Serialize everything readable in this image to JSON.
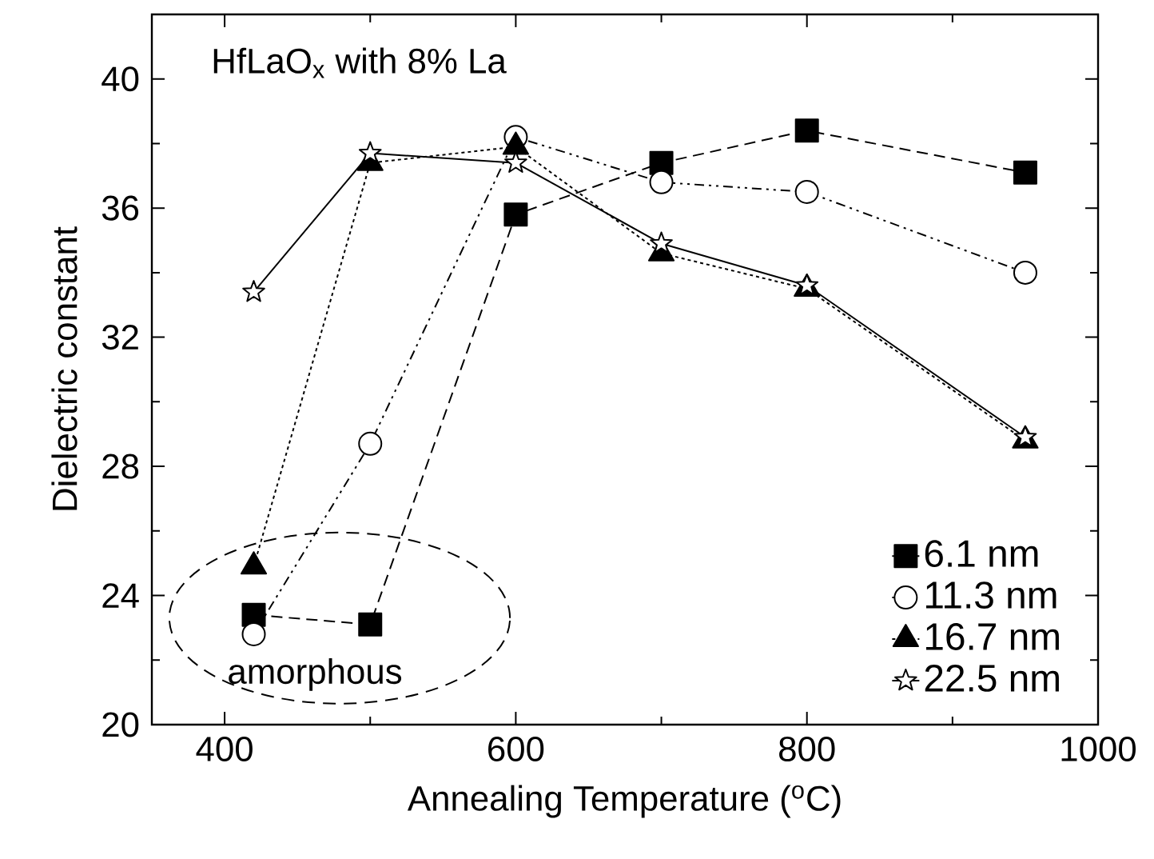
{
  "chart_data": {
    "type": "line",
    "title": "HfLaO$_{x}$ with 8% La",
    "xlabel": "Annealing Temperature ($^{o}$C)",
    "ylabel": "Dielectric constant",
    "x": [
      420,
      500,
      600,
      700,
      800,
      950
    ],
    "series": [
      {
        "name": "6.1 nm",
        "color": "#000000",
        "marker": "square",
        "line_style": "dashed",
        "values": [
          23.4,
          23.1,
          35.8,
          37.4,
          38.4,
          37.1
        ]
      },
      {
        "name": "11.3 nm",
        "color": "#000000",
        "marker": "circle",
        "line_style": "dashdotdotted",
        "values": [
          22.8,
          28.7,
          38.2,
          36.8,
          36.5,
          34.0
        ]
      },
      {
        "name": "16.7 nm",
        "color": "#000000",
        "marker": "triangle",
        "line_style": "dotted",
        "values": [
          24.9,
          37.4,
          37.9,
          34.6,
          33.5,
          28.8
        ]
      },
      {
        "name": "22.5 nm",
        "color": "#000000",
        "marker": "star",
        "line_style": "solid",
        "values": [
          33.4,
          37.7,
          37.4,
          34.9,
          33.6,
          28.9
        ]
      }
    ],
    "annotations": [
      "amorphous"
    ],
    "xlim": [
      350,
      1000
    ],
    "ylim": [
      20,
      42
    ],
    "xticks": [
      400,
      600,
      800,
      1000
    ],
    "yticks": [
      20,
      24,
      28,
      32,
      36,
      40
    ],
    "grid": false,
    "legend": "bottom right"
  }
}
